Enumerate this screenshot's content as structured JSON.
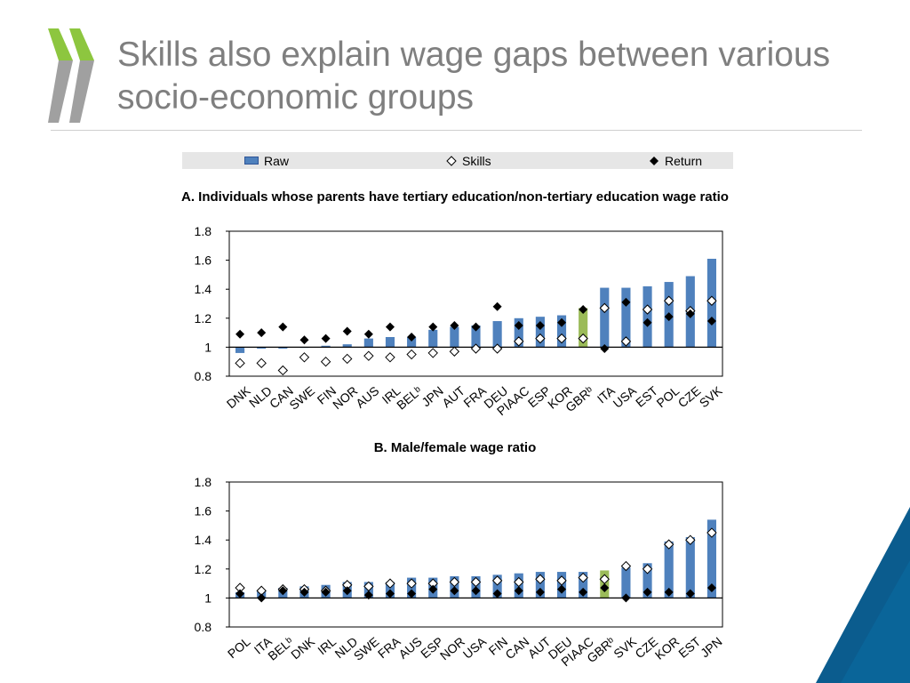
{
  "page": {
    "title": "Skills also explain wage gaps between various socio-economic groups"
  },
  "colors": {
    "bar": "#4f81bd",
    "bar_highlight": "#9bbb59",
    "title_text": "#7f7f7f",
    "logo_green": "#8dc63f",
    "logo_gray": "#a0a0a0",
    "corner_blue": "#0b5c8e",
    "corner_light": "#2aa5d8"
  },
  "legend": {
    "raw": "Raw",
    "skills": "Skills",
    "return": "Return"
  },
  "chart_data": [
    {
      "type": "bar",
      "title": "A. Individuals whose parents have tertiary education/non-tertiary education wage ratio",
      "ylim": [
        0.8,
        1.8
      ],
      "yticks": [
        "0.8",
        "1",
        "1.2",
        "1.4",
        "1.6",
        "1.8"
      ],
      "baseline": 1,
      "highlight": "GBRᵇ",
      "categories": [
        "DNK",
        "NLD",
        "CAN",
        "SWE",
        "FIN",
        "NOR",
        "AUS",
        "IRL",
        "BELᵇ",
        "JPN",
        "AUT",
        "FRA",
        "DEU",
        "PIAAC",
        "ESP",
        "KOR",
        "GBRᵇ",
        "ITA",
        "USA",
        "EST",
        "POL",
        "CZE",
        "SVK"
      ],
      "series": [
        {
          "name": "Raw",
          "values": [
            0.96,
            0.99,
            0.99,
            1.0,
            1.01,
            1.02,
            1.06,
            1.07,
            1.07,
            1.12,
            1.14,
            1.15,
            1.18,
            1.2,
            1.21,
            1.22,
            1.27,
            1.41,
            1.41,
            1.42,
            1.45,
            1.49,
            1.61
          ]
        },
        {
          "name": "Skills",
          "values": [
            0.89,
            0.89,
            0.84,
            0.93,
            0.9,
            0.92,
            0.94,
            0.93,
            0.95,
            0.96,
            0.97,
            0.99,
            0.99,
            1.04,
            1.06,
            1.06,
            1.06,
            1.27,
            1.04,
            1.26,
            1.32,
            1.25,
            1.32
          ]
        },
        {
          "name": "Return",
          "values": [
            1.09,
            1.1,
            1.14,
            1.05,
            1.06,
            1.11,
            1.09,
            1.14,
            1.07,
            1.14,
            1.15,
            1.14,
            1.28,
            1.15,
            1.15,
            1.17,
            1.26,
            0.99,
            1.31,
            1.17,
            1.21,
            1.23,
            1.18
          ]
        }
      ]
    },
    {
      "type": "bar",
      "title": "B. Male/female wage ratio",
      "ylim": [
        0.8,
        1.8
      ],
      "yticks": [
        "0.8",
        "1",
        "1.2",
        "1.4",
        "1.6",
        "1.8"
      ],
      "baseline": 1,
      "highlight": "GBRᵇ",
      "categories": [
        "POL",
        "ITA",
        "BELᵇ",
        "DNK",
        "IRL",
        "NLD",
        "SWE",
        "FRA",
        "AUS",
        "ESP",
        "NOR",
        "USA",
        "FIN",
        "CAN",
        "AUT",
        "DEU",
        "PIAAC",
        "GBRᵇ",
        "SVK",
        "CZE",
        "KOR",
        "EST",
        "JPN"
      ],
      "series": [
        {
          "name": "Raw",
          "values": [
            1.04,
            1.05,
            1.07,
            1.08,
            1.09,
            1.11,
            1.11,
            1.11,
            1.14,
            1.14,
            1.15,
            1.15,
            1.16,
            1.17,
            1.18,
            1.18,
            1.18,
            1.19,
            1.21,
            1.24,
            1.39,
            1.42,
            1.54
          ]
        },
        {
          "name": "Skills",
          "values": [
            1.07,
            1.05,
            1.06,
            1.06,
            1.05,
            1.09,
            1.08,
            1.1,
            1.1,
            1.1,
            1.11,
            1.11,
            1.12,
            1.11,
            1.13,
            1.12,
            1.14,
            1.13,
            1.22,
            1.2,
            1.37,
            1.4,
            1.45
          ]
        },
        {
          "name": "Return",
          "values": [
            1.03,
            1.0,
            1.05,
            1.04,
            1.04,
            1.05,
            1.02,
            1.03,
            1.03,
            1.06,
            1.05,
            1.05,
            1.03,
            1.05,
            1.04,
            1.06,
            1.04,
            1.07,
            1.0,
            1.04,
            1.04,
            1.03,
            1.07
          ]
        }
      ]
    }
  ]
}
